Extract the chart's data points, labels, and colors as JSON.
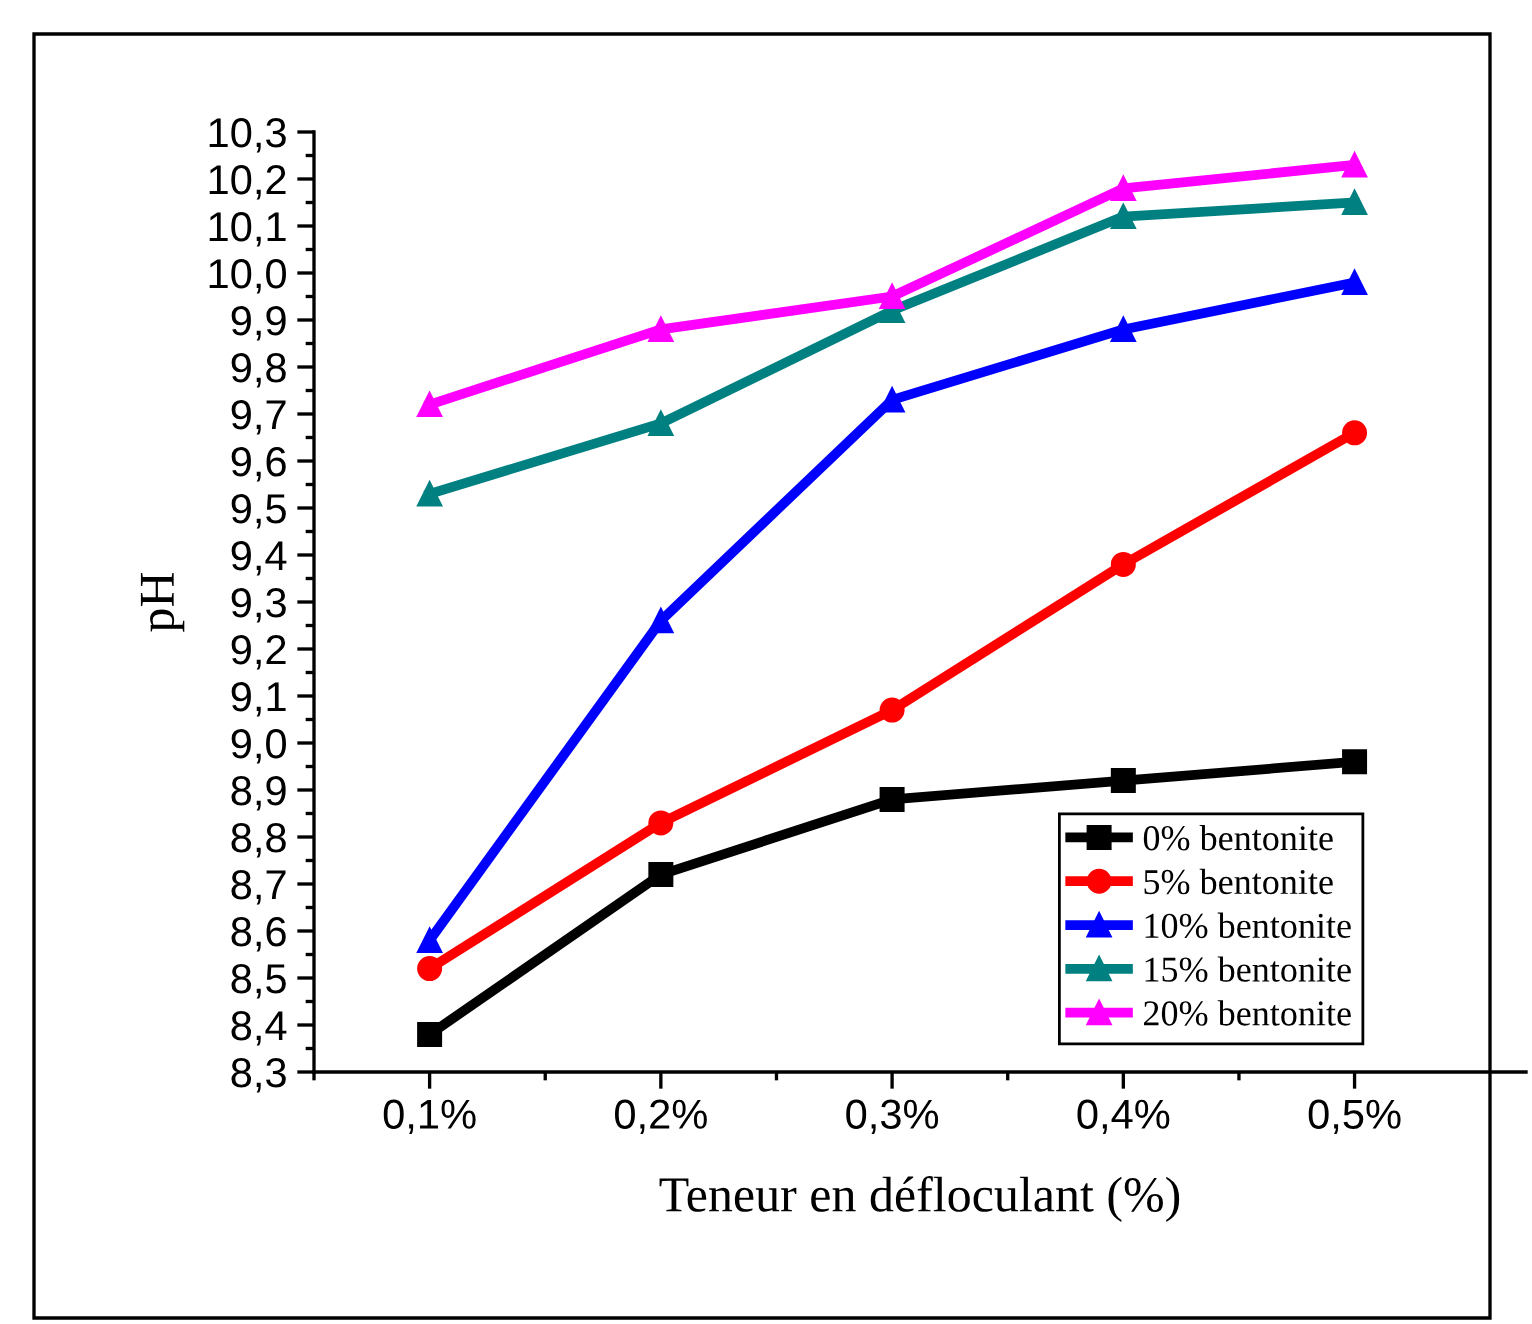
{
  "chart_data": {
    "type": "line",
    "xlabel": "Teneur en défloculant (%)",
    "ylabel": "pH",
    "categories": [
      "0,1%",
      "0,2%",
      "0,3%",
      "0,4%",
      "0,5%"
    ],
    "series": [
      {
        "name": "0% bentonite",
        "color": "#000000",
        "marker": "square",
        "values": [
          8.38,
          8.72,
          8.88,
          8.92,
          8.96
        ]
      },
      {
        "name": "5% bentonite",
        "color": "#ff0000",
        "marker": "circle",
        "values": [
          8.52,
          8.83,
          9.07,
          9.38,
          9.66
        ]
      },
      {
        "name": "10% bentonite",
        "color": "#0000ff",
        "marker": "triangle",
        "values": [
          8.58,
          9.26,
          9.73,
          9.88,
          9.98
        ]
      },
      {
        "name": "15% bentonite",
        "color": "#008080",
        "marker": "triangle",
        "values": [
          9.53,
          9.68,
          9.92,
          10.12,
          10.15
        ]
      },
      {
        "name": "20% bentonite",
        "color": "#ff00ff",
        "marker": "triangle",
        "values": [
          9.72,
          9.88,
          9.95,
          10.18,
          10.23
        ]
      }
    ],
    "ylim": [
      8.3,
      10.3
    ],
    "yticks": [
      {
        "value": 8.3,
        "label": "8,3"
      },
      {
        "value": 8.4,
        "label": "8,4"
      },
      {
        "value": 8.5,
        "label": "8,5"
      },
      {
        "value": 8.6,
        "label": "8,6"
      },
      {
        "value": 8.7,
        "label": "8,7"
      },
      {
        "value": 8.8,
        "label": "8,8"
      },
      {
        "value": 8.9,
        "label": "8,9"
      },
      {
        "value": 9.0,
        "label": "9,0"
      },
      {
        "value": 9.1,
        "label": "9,1"
      },
      {
        "value": 9.2,
        "label": "9,2"
      },
      {
        "value": 9.3,
        "label": "9,3"
      },
      {
        "value": 9.4,
        "label": "9,4"
      },
      {
        "value": 9.5,
        "label": "9,5"
      },
      {
        "value": 9.6,
        "label": "9,6"
      },
      {
        "value": 9.7,
        "label": "9,7"
      },
      {
        "value": 9.8,
        "label": "9,8"
      },
      {
        "value": 9.9,
        "label": "9,9"
      },
      {
        "value": 10.0,
        "label": "10,0"
      },
      {
        "value": 10.1,
        "label": "10,1"
      },
      {
        "value": 10.2,
        "label": "10,2"
      },
      {
        "value": 10.3,
        "label": "10,3"
      }
    ],
    "grid": false,
    "legend": "bottom right",
    "line_style": "solid"
  }
}
